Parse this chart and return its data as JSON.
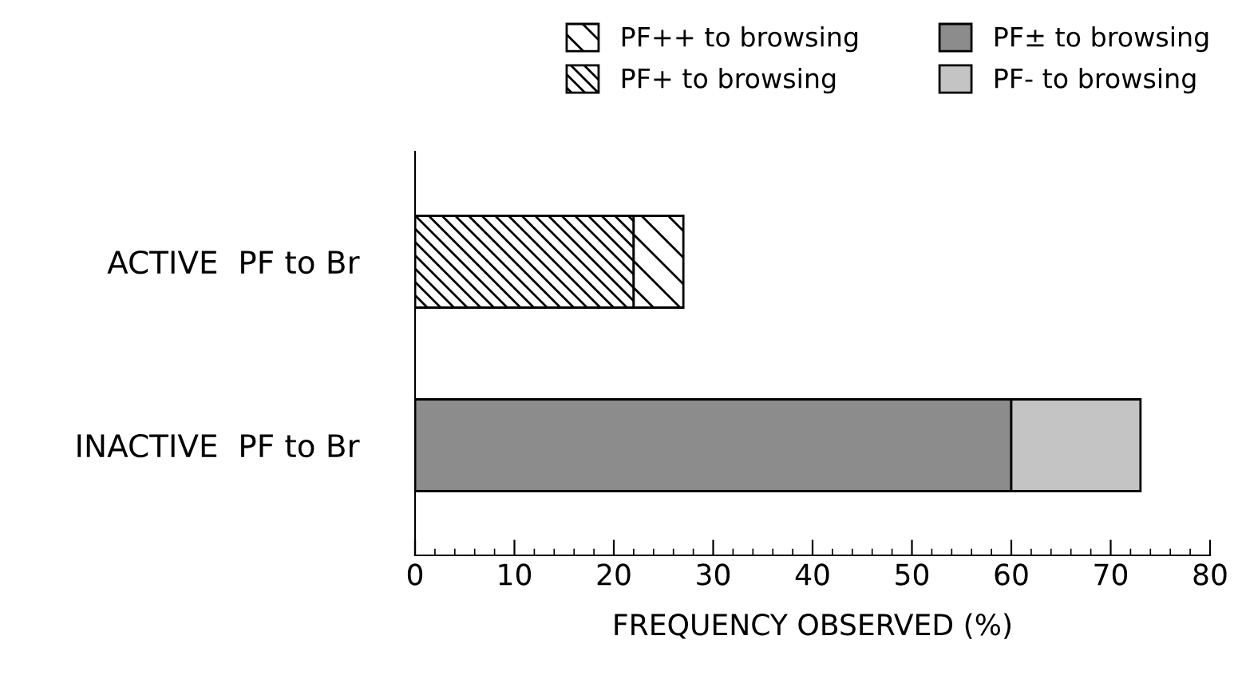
{
  "chart_data": {
    "type": "bar",
    "orientation": "horizontal",
    "stacked": true,
    "categories": [
      "ACTIVE  PF to Br",
      "INACTIVE  PF to Br"
    ],
    "series": [
      {
        "name": "PF+ to browsing",
        "color": "#000000",
        "values": [
          22,
          null
        ]
      },
      {
        "name": "PF++ to browsing",
        "color": "#000000",
        "values": [
          5,
          null
        ]
      },
      {
        "name": "PF± to browsing",
        "color": "#8c8c8c",
        "values": [
          null,
          60
        ]
      },
      {
        "name": "PF- to browsing",
        "color": "#c4c4c4",
        "values": [
          null,
          13
        ]
      }
    ],
    "xlabel": "FREQUENCY OBSERVED (%)",
    "xlim": [
      0,
      80
    ],
    "xticks": [
      0,
      10,
      20,
      30,
      40,
      50,
      60,
      70,
      80
    ],
    "grid": false,
    "legend": "top"
  }
}
